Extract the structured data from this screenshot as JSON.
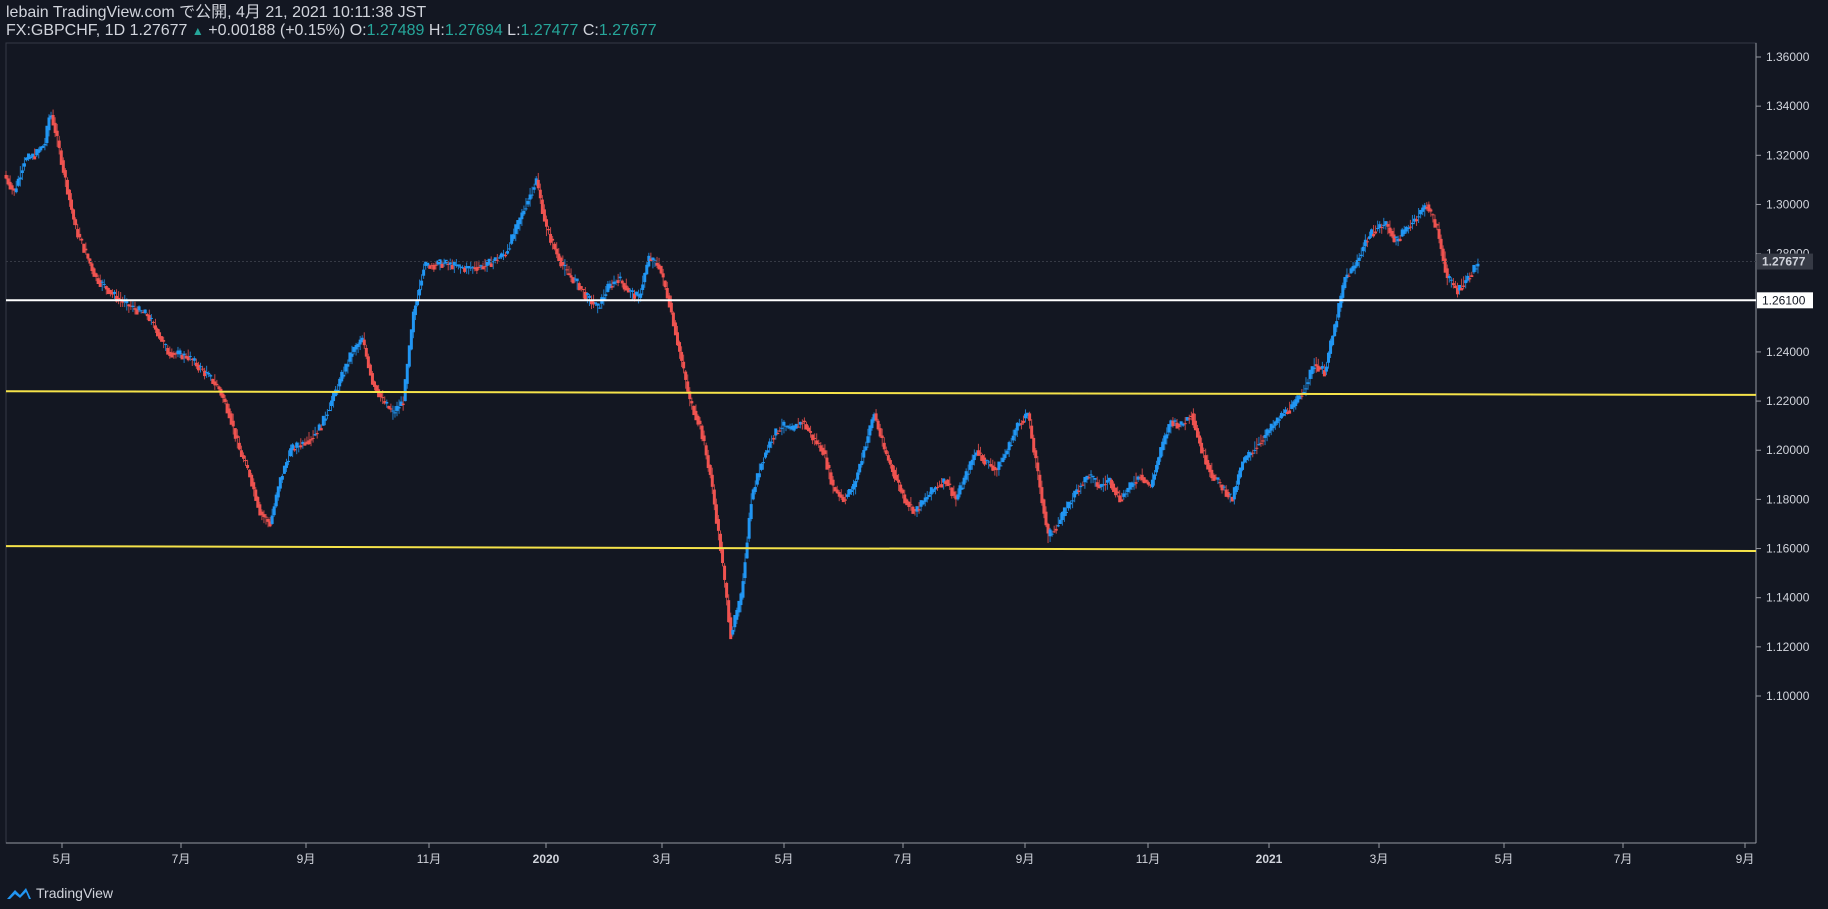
{
  "header": {
    "line1": "lebain TradingView.com で公開, 4月 21, 2021 10:11:38 JST",
    "symbol": "FX:GBPCHF, 1D",
    "last": "1.27677",
    "change": "+0.00188 (+0.15%)",
    "o_label": "O:",
    "o_value": "1.27489",
    "h_label": "H:",
    "h_value": "1.27694",
    "l_label": "L:",
    "l_value": "1.27477",
    "c_label": "C:",
    "c_value": "1.27677"
  },
  "footer": {
    "brand": "TradingView"
  },
  "colors": {
    "background": "#131722",
    "up": "#2196f3",
    "down": "#ef5350",
    "white_line": "#ffffff",
    "yellow_line": "#f5e34a",
    "axis_text": "#d1d4dc"
  },
  "chart_data": {
    "type": "line",
    "symbol": "FX:GBPCHF",
    "interval": "1D",
    "price_ticks": [
      "1.36000",
      "1.34000",
      "1.32000",
      "1.30000",
      "1.28000",
      "1.24000",
      "1.22000",
      "1.20000",
      "1.18000",
      "1.16000",
      "1.14000",
      "1.12000",
      "1.10000"
    ],
    "price_labels": {
      "last": "1.27677",
      "horizontal": "1.26100"
    },
    "time_ticks": [
      "5月",
      "7月",
      "9月",
      "11月",
      "2020",
      "3月",
      "5月",
      "7月",
      "9月",
      "11月",
      "2021",
      "3月",
      "5月",
      "7月",
      "9月"
    ],
    "ylim": [
      1.09,
      1.37
    ],
    "horizontal_lines": [
      {
        "color": "white",
        "y_start": 1.261,
        "y_end": 1.261
      },
      {
        "color": "yellow",
        "y_start": 1.224,
        "y_end": 1.2225
      },
      {
        "color": "yellow",
        "y_start": 1.161,
        "y_end": 1.159
      }
    ],
    "price_path": [
      [
        0,
        1.312
      ],
      [
        0.02,
        1.305
      ],
      [
        0.04,
        1.318
      ],
      [
        0.06,
        1.32
      ],
      [
        0.08,
        1.325
      ],
      [
        0.09,
        1.338
      ],
      [
        0.1,
        1.33
      ],
      [
        0.12,
        1.31
      ],
      [
        0.14,
        1.29
      ],
      [
        0.18,
        1.27
      ],
      [
        0.22,
        1.262
      ],
      [
        0.25,
        1.258
      ],
      [
        0.28,
        1.255
      ],
      [
        0.3,
        1.248
      ],
      [
        0.32,
        1.24
      ],
      [
        0.36,
        1.238
      ],
      [
        0.4,
        1.23
      ],
      [
        0.42,
        1.225
      ],
      [
        0.44,
        1.215
      ],
      [
        0.46,
        1.2
      ],
      [
        0.48,
        1.19
      ],
      [
        0.5,
        1.175
      ],
      [
        0.52,
        1.17
      ],
      [
        0.54,
        1.188
      ],
      [
        0.56,
        1.2
      ],
      [
        0.6,
        1.205
      ],
      [
        0.62,
        1.21
      ],
      [
        0.64,
        1.22
      ],
      [
        0.66,
        1.23
      ],
      [
        0.68,
        1.24
      ],
      [
        0.7,
        1.245
      ],
      [
        0.72,
        1.228
      ],
      [
        0.74,
        1.22
      ],
      [
        0.76,
        1.215
      ],
      [
        0.78,
        1.22
      ],
      [
        0.8,
        1.255
      ],
      [
        0.82,
        1.275
      ],
      [
        0.86,
        1.276
      ],
      [
        0.9,
        1.274
      ],
      [
        0.94,
        1.275
      ],
      [
        0.98,
        1.28
      ],
      [
        1.0,
        1.29
      ],
      [
        1.02,
        1.3
      ],
      [
        1.04,
        1.31
      ],
      [
        1.06,
        1.29
      ],
      [
        1.08,
        1.28
      ],
      [
        1.1,
        1.272
      ],
      [
        1.12,
        1.268
      ],
      [
        1.14,
        1.262
      ],
      [
        1.16,
        1.258
      ],
      [
        1.18,
        1.266
      ],
      [
        1.2,
        1.27
      ],
      [
        1.22,
        1.265
      ],
      [
        1.24,
        1.262
      ],
      [
        1.26,
        1.278
      ],
      [
        1.28,
        1.275
      ],
      [
        1.3,
        1.26
      ],
      [
        1.32,
        1.24
      ],
      [
        1.34,
        1.22
      ],
      [
        1.36,
        1.21
      ],
      [
        1.38,
        1.19
      ],
      [
        1.4,
        1.16
      ],
      [
        1.42,
        1.125
      ],
      [
        1.44,
        1.14
      ],
      [
        1.46,
        1.18
      ],
      [
        1.48,
        1.195
      ],
      [
        1.5,
        1.205
      ],
      [
        1.52,
        1.21
      ],
      [
        1.54,
        1.208
      ],
      [
        1.56,
        1.212
      ],
      [
        1.58,
        1.205
      ],
      [
        1.6,
        1.2
      ],
      [
        1.62,
        1.185
      ],
      [
        1.64,
        1.18
      ],
      [
        1.66,
        1.185
      ],
      [
        1.68,
        1.2
      ],
      [
        1.7,
        1.215
      ],
      [
        1.72,
        1.2
      ],
      [
        1.74,
        1.19
      ],
      [
        1.76,
        1.18
      ],
      [
        1.78,
        1.175
      ],
      [
        1.8,
        1.18
      ],
      [
        1.82,
        1.185
      ],
      [
        1.84,
        1.188
      ],
      [
        1.86,
        1.18
      ],
      [
        1.88,
        1.19
      ],
      [
        1.9,
        1.2
      ],
      [
        1.92,
        1.195
      ],
      [
        1.94,
        1.192
      ],
      [
        1.96,
        1.2
      ],
      [
        1.98,
        1.21
      ],
      [
        2.0,
        1.215
      ],
      [
        2.02,
        1.19
      ],
      [
        2.04,
        1.165
      ],
      [
        2.06,
        1.17
      ],
      [
        2.08,
        1.178
      ],
      [
        2.1,
        1.185
      ],
      [
        2.12,
        1.19
      ],
      [
        2.14,
        1.185
      ],
      [
        2.16,
        1.188
      ],
      [
        2.18,
        1.18
      ],
      [
        2.2,
        1.185
      ],
      [
        2.22,
        1.19
      ],
      [
        2.24,
        1.185
      ],
      [
        2.26,
        1.2
      ],
      [
        2.28,
        1.212
      ],
      [
        2.3,
        1.21
      ],
      [
        2.32,
        1.215
      ],
      [
        2.34,
        1.2
      ],
      [
        2.36,
        1.19
      ],
      [
        2.38,
        1.185
      ],
      [
        2.4,
        1.18
      ],
      [
        2.42,
        1.195
      ],
      [
        2.44,
        1.2
      ],
      [
        2.46,
        1.205
      ],
      [
        2.48,
        1.21
      ],
      [
        2.5,
        1.215
      ],
      [
        2.52,
        1.218
      ],
      [
        2.54,
        1.225
      ],
      [
        2.56,
        1.235
      ],
      [
        2.58,
        1.232
      ],
      [
        2.6,
        1.25
      ],
      [
        2.62,
        1.27
      ],
      [
        2.64,
        1.275
      ],
      [
        2.66,
        1.285
      ],
      [
        2.68,
        1.29
      ],
      [
        2.7,
        1.292
      ],
      [
        2.72,
        1.285
      ],
      [
        2.74,
        1.29
      ],
      [
        2.76,
        1.295
      ],
      [
        2.78,
        1.3
      ],
      [
        2.8,
        1.29
      ],
      [
        2.82,
        1.27
      ],
      [
        2.84,
        1.265
      ],
      [
        2.86,
        1.27
      ],
      [
        2.88,
        1.276
      ]
    ]
  }
}
